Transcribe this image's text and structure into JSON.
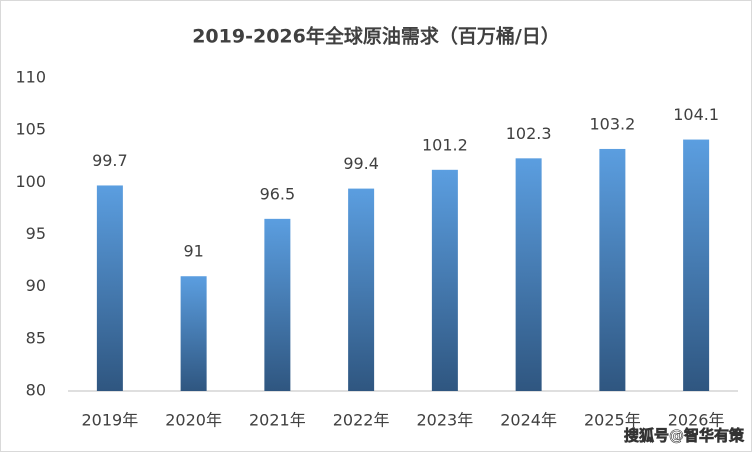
{
  "chart_data": {
    "type": "bar",
    "title": "2019-2026年全球原油需求（百万桶/日）",
    "categories": [
      "2019年",
      "2020年",
      "2021年",
      "2022年",
      "2023年",
      "2024年",
      "2025年",
      "2026年"
    ],
    "values": [
      99.7,
      91,
      96.5,
      99.4,
      101.2,
      102.3,
      103.2,
      104.1
    ],
    "color": "#5b9bd5",
    "ylim": [
      80,
      110
    ],
    "yticks": [
      80,
      85,
      90,
      95,
      100,
      105,
      110
    ],
    "grid": false
  },
  "watermark": "搜狐号@智华有策"
}
